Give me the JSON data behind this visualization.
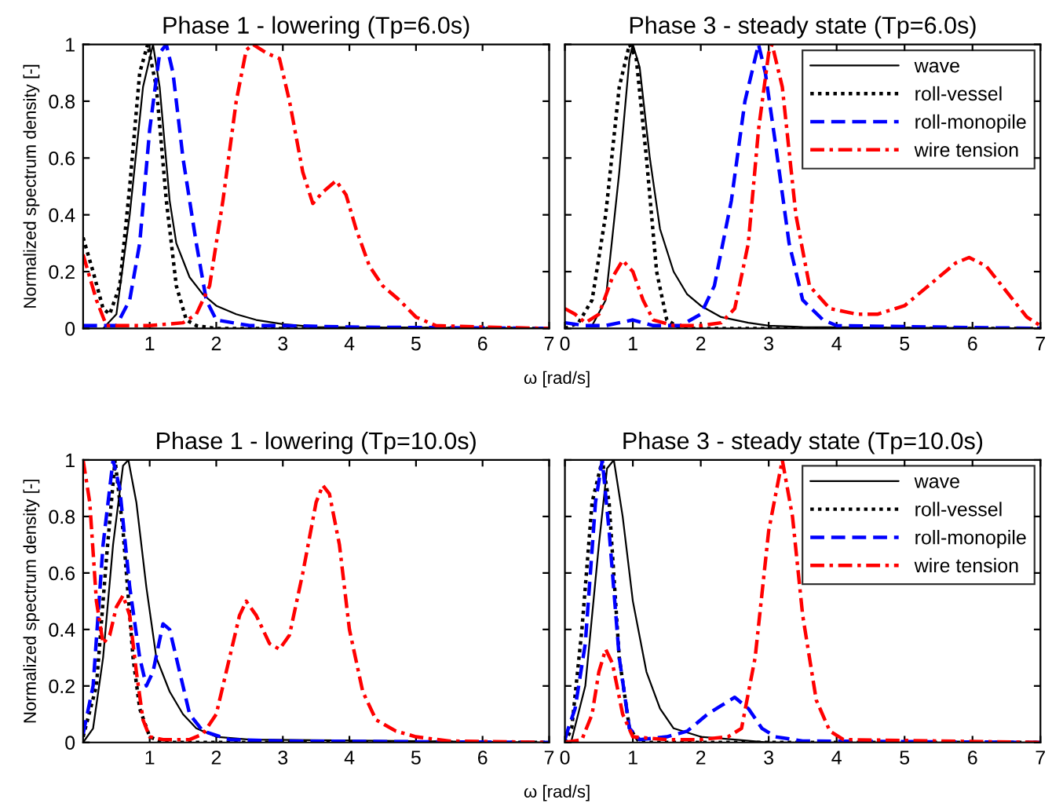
{
  "chart_data": [
    {
      "type": "line",
      "title": "Phase 1 - lowering (Tp=6.0s)",
      "ylabel": "Normalized spectrum density [-]",
      "xlabel": "ω [rad/s]",
      "xlim": [
        0,
        7
      ],
      "xticks": [
        1,
        2,
        3,
        4,
        5,
        6,
        7
      ],
      "ylim": [
        0,
        1
      ],
      "yticks": [
        0,
        0.2,
        0.4,
        0.6,
        0.8,
        1
      ],
      "grid": false,
      "legend": false,
      "marker": "none",
      "series": [
        {
          "color": "#000000",
          "line_style": "solid",
          "x": [
            0.3,
            0.5,
            0.7,
            0.9,
            1.05,
            1.15,
            1.3,
            1.4,
            1.6,
            1.8,
            2.0,
            2.3,
            2.6,
            3.0,
            3.5,
            7
          ],
          "values": [
            0,
            0.05,
            0.4,
            0.85,
            1.0,
            0.85,
            0.45,
            0.3,
            0.18,
            0.12,
            0.08,
            0.05,
            0.03,
            0.015,
            0.005,
            0
          ]
        },
        {
          "color": "#000000",
          "line_style": "dotted",
          "x": [
            0,
            0.15,
            0.3,
            0.4,
            0.55,
            0.7,
            0.85,
            0.97,
            1.1,
            1.25,
            1.4,
            1.55,
            1.7,
            2.0,
            7
          ],
          "values": [
            0.32,
            0.2,
            0.07,
            0.05,
            0.15,
            0.5,
            0.9,
            1.0,
            0.85,
            0.45,
            0.15,
            0.03,
            0.01,
            0,
            0
          ]
        },
        {
          "color": "#0000ff",
          "line_style": "dashed",
          "x": [
            0,
            0.5,
            0.7,
            0.85,
            1.0,
            1.15,
            1.25,
            1.35,
            1.5,
            1.7,
            1.85,
            2.0,
            2.5,
            3.0,
            4.0,
            7
          ],
          "values": [
            0.01,
            0.01,
            0.1,
            0.3,
            0.7,
            0.97,
            1.0,
            0.9,
            0.6,
            0.3,
            0.1,
            0.03,
            0.01,
            0.01,
            0.005,
            0
          ]
        },
        {
          "color": "#ff0000",
          "line_style": "dashdot",
          "x": [
            0,
            0.2,
            0.35,
            0.5,
            1.0,
            1.5,
            1.7,
            1.9,
            2.1,
            2.3,
            2.45,
            2.55,
            2.75,
            2.95,
            3.1,
            3.3,
            3.45,
            3.6,
            3.8,
            3.95,
            4.1,
            4.3,
            4.5,
            4.75,
            5.0,
            5.3,
            6.0,
            7
          ],
          "values": [
            0.26,
            0.1,
            0.01,
            0.01,
            0.01,
            0.02,
            0.05,
            0.15,
            0.45,
            0.8,
            0.98,
            1.0,
            0.97,
            0.95,
            0.8,
            0.55,
            0.44,
            0.48,
            0.52,
            0.47,
            0.35,
            0.22,
            0.15,
            0.1,
            0.04,
            0.01,
            0.005,
            0
          ]
        }
      ]
    },
    {
      "type": "line",
      "title": "Phase 3 - steady state (Tp=6.0s)",
      "xlim": [
        0,
        7
      ],
      "xticks": [
        0,
        1,
        2,
        3,
        4,
        5,
        6,
        7
      ],
      "ylim": [
        0,
        1
      ],
      "yticks": [
        0,
        0.2,
        0.4,
        0.6,
        0.8,
        1
      ],
      "tick_labels": "x",
      "grid": false,
      "legend": "top right",
      "marker": "none",
      "series": [
        {
          "name": "wave",
          "color": "#000000",
          "line_style": "solid",
          "x": [
            0.4,
            0.6,
            0.8,
            0.95,
            1.0,
            1.1,
            1.25,
            1.4,
            1.6,
            1.8,
            2.0,
            2.3,
            2.7,
            3.0,
            3.5,
            7
          ],
          "values": [
            0.01,
            0.1,
            0.55,
            0.95,
            1.0,
            0.92,
            0.6,
            0.35,
            0.2,
            0.12,
            0.08,
            0.04,
            0.02,
            0.01,
            0.005,
            0
          ]
        },
        {
          "name": "roll-vessel",
          "color": "#000000",
          "line_style": "dotted",
          "x": [
            0,
            0.2,
            0.4,
            0.6,
            0.8,
            0.95,
            1.05,
            1.2,
            1.35,
            1.5,
            1.7,
            7
          ],
          "values": [
            0,
            0.02,
            0.1,
            0.4,
            0.85,
            1.0,
            0.95,
            0.6,
            0.2,
            0.03,
            0,
            0
          ]
        },
        {
          "name": "roll-monopile",
          "color": "#0000ff",
          "line_style": "dashed",
          "x": [
            0,
            0.3,
            0.6,
            1.0,
            1.3,
            1.7,
            2.0,
            2.2,
            2.45,
            2.65,
            2.85,
            2.95,
            3.1,
            3.3,
            3.5,
            3.8,
            4.0,
            7
          ],
          "values": [
            0.02,
            0.01,
            0.01,
            0.03,
            0.01,
            0.01,
            0.05,
            0.15,
            0.45,
            0.8,
            1.0,
            0.9,
            0.65,
            0.3,
            0.1,
            0.03,
            0.01,
            0
          ]
        },
        {
          "name": "wire tension",
          "color": "#ff0000",
          "line_style": "dashdot",
          "x": [
            0,
            0.15,
            0.3,
            0.5,
            0.7,
            0.85,
            1.0,
            1.15,
            1.3,
            1.6,
            2.0,
            2.3,
            2.5,
            2.7,
            2.85,
            3.0,
            3.05,
            3.2,
            3.4,
            3.6,
            3.9,
            4.3,
            4.6,
            5.0,
            5.4,
            5.75,
            5.95,
            6.2,
            6.5,
            6.8,
            7
          ],
          "values": [
            0.07,
            0.05,
            0.02,
            0.05,
            0.18,
            0.24,
            0.2,
            0.1,
            0.03,
            0.01,
            0.01,
            0.02,
            0.07,
            0.3,
            0.7,
            0.97,
            1.0,
            0.85,
            0.4,
            0.15,
            0.07,
            0.05,
            0.05,
            0.08,
            0.16,
            0.23,
            0.25,
            0.22,
            0.13,
            0.04,
            0.01
          ]
        }
      ]
    },
    {
      "type": "line",
      "title": "Phase 1 - lowering (Tp=10.0s)",
      "ylabel": "Normalized spectrum density [-]",
      "xlabel": "ω [rad/s]",
      "xlim": [
        0,
        7
      ],
      "xticks": [
        1,
        2,
        3,
        4,
        5,
        6,
        7
      ],
      "ylim": [
        0,
        1
      ],
      "yticks": [
        0,
        0.2,
        0.4,
        0.6,
        0.8,
        1
      ],
      "grid": false,
      "legend": false,
      "marker": "none",
      "series": [
        {
          "color": "#000000",
          "line_style": "solid",
          "x": [
            0,
            0.15,
            0.3,
            0.45,
            0.6,
            0.68,
            0.8,
            0.95,
            1.1,
            1.3,
            1.5,
            1.7,
            2.0,
            2.5,
            7
          ],
          "values": [
            0,
            0.05,
            0.3,
            0.7,
            0.98,
            1.0,
            0.85,
            0.55,
            0.3,
            0.18,
            0.1,
            0.05,
            0.02,
            0.01,
            0
          ]
        },
        {
          "color": "#000000",
          "line_style": "dotted",
          "x": [
            0,
            0.2,
            0.35,
            0.48,
            0.6,
            0.75,
            0.85,
            1.0,
            1.2,
            7
          ],
          "values": [
            0.02,
            0.2,
            0.65,
            1.0,
            0.75,
            0.3,
            0.12,
            0.02,
            0,
            0
          ]
        },
        {
          "color": "#0000ff",
          "line_style": "dashed",
          "x": [
            0,
            0.15,
            0.3,
            0.45,
            0.55,
            0.7,
            0.85,
            0.95,
            1.05,
            1.2,
            1.3,
            1.45,
            1.6,
            1.8,
            2.2,
            3.0,
            7
          ],
          "values": [
            0.03,
            0.2,
            0.7,
            1.0,
            0.9,
            0.55,
            0.3,
            0.2,
            0.25,
            0.42,
            0.4,
            0.25,
            0.1,
            0.04,
            0.01,
            0.005,
            0
          ]
        },
        {
          "color": "#ff0000",
          "line_style": "dashdot",
          "x": [
            0,
            0.1,
            0.2,
            0.3,
            0.4,
            0.5,
            0.6,
            0.7,
            0.8,
            0.9,
            1.0,
            1.2,
            1.6,
            1.8,
            2.0,
            2.2,
            2.35,
            2.45,
            2.6,
            2.8,
            2.95,
            3.1,
            3.3,
            3.5,
            3.6,
            3.7,
            3.85,
            4.0,
            4.2,
            4.4,
            4.7,
            5.0,
            5.5,
            7
          ],
          "values": [
            1.0,
            0.85,
            0.5,
            0.35,
            0.38,
            0.48,
            0.52,
            0.45,
            0.25,
            0.08,
            0.02,
            0.01,
            0.01,
            0.03,
            0.1,
            0.3,
            0.45,
            0.5,
            0.45,
            0.35,
            0.33,
            0.38,
            0.6,
            0.85,
            0.91,
            0.88,
            0.7,
            0.4,
            0.18,
            0.08,
            0.04,
            0.02,
            0.005,
            0
          ]
        }
      ]
    },
    {
      "type": "line",
      "title": "Phase 3 - steady state (Tp=10.0s)",
      "xlim": [
        0,
        7
      ],
      "xticks": [
        0,
        1,
        2,
        3,
        4,
        5,
        6,
        7
      ],
      "ylim": [
        0,
        1
      ],
      "yticks": [
        0,
        0.2,
        0.4,
        0.6,
        0.8,
        1
      ],
      "tick_labels": "x",
      "grid": false,
      "legend": "top right",
      "marker": "none",
      "series": [
        {
          "name": "wave",
          "color": "#000000",
          "line_style": "solid",
          "x": [
            0.1,
            0.3,
            0.5,
            0.62,
            0.72,
            0.85,
            1.0,
            1.2,
            1.4,
            1.6,
            2.0,
            2.5,
            3.0,
            7
          ],
          "values": [
            0.01,
            0.2,
            0.7,
            0.97,
            1.0,
            0.8,
            0.5,
            0.25,
            0.12,
            0.05,
            0.02,
            0.01,
            0,
            0
          ]
        },
        {
          "name": "roll-vessel",
          "color": "#000000",
          "line_style": "dotted",
          "x": [
            0,
            0.1,
            0.25,
            0.4,
            0.55,
            0.65,
            0.8,
            0.95,
            1.1,
            7
          ],
          "values": [
            0,
            0.05,
            0.4,
            0.85,
            1.0,
            0.85,
            0.3,
            0.05,
            0,
            0
          ]
        },
        {
          "name": "roll-monopile",
          "color": "#0000ff",
          "line_style": "dashed",
          "x": [
            0,
            0.05,
            0.15,
            0.3,
            0.45,
            0.55,
            0.65,
            0.8,
            0.95,
            1.1,
            1.5,
            1.8,
            2.1,
            2.3,
            2.5,
            2.7,
            2.9,
            3.1,
            3.5,
            7
          ],
          "values": [
            0.01,
            0.05,
            0.12,
            0.35,
            0.85,
            1.0,
            0.75,
            0.3,
            0.05,
            0.01,
            0.02,
            0.04,
            0.1,
            0.13,
            0.16,
            0.12,
            0.05,
            0.02,
            0.005,
            0
          ]
        },
        {
          "name": "wire tension",
          "color": "#ff0000",
          "line_style": "dashdot",
          "x": [
            0,
            0.25,
            0.4,
            0.5,
            0.6,
            0.7,
            0.85,
            1.0,
            1.5,
            2.0,
            2.4,
            2.6,
            2.8,
            3.0,
            3.2,
            3.35,
            3.5,
            3.7,
            3.9,
            4.1,
            7
          ],
          "values": [
            0,
            0.01,
            0.1,
            0.25,
            0.33,
            0.28,
            0.1,
            0.02,
            0.01,
            0.01,
            0.02,
            0.05,
            0.3,
            0.75,
            1.0,
            0.8,
            0.45,
            0.15,
            0.04,
            0.01,
            0
          ]
        }
      ]
    }
  ]
}
